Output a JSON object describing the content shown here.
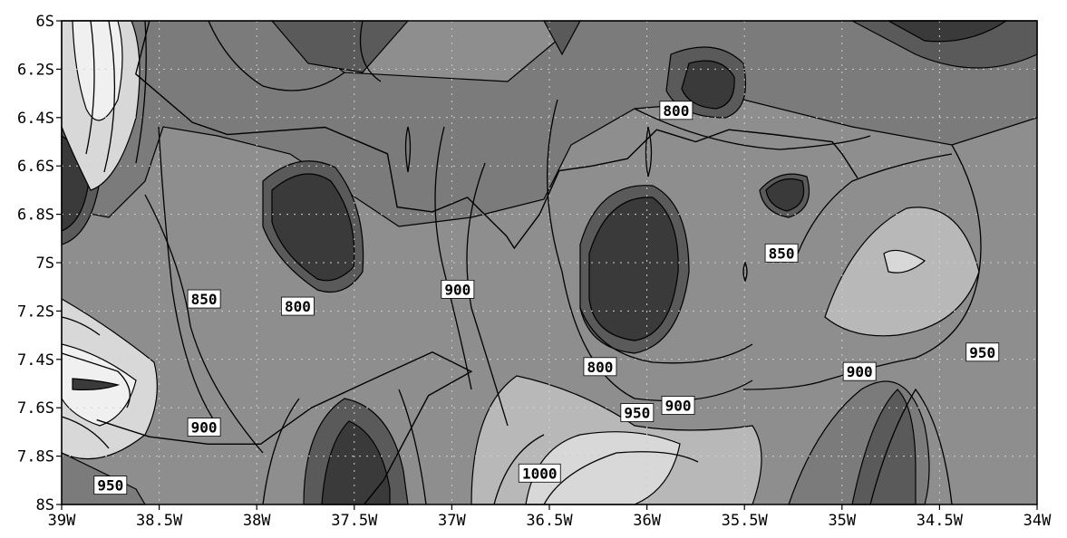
{
  "chart_data": {
    "type": "contour",
    "title": "",
    "xlabel": "",
    "ylabel": "",
    "xlim": [
      -39,
      -34
    ],
    "ylim": [
      -8,
      -6
    ],
    "x_tick_labels": [
      "39W",
      "38.5W",
      "38W",
      "37.5W",
      "37W",
      "36.5W",
      "36W",
      "35.5W",
      "35W",
      "34.5W",
      "34W"
    ],
    "x_tick_values": [
      -39,
      -38.5,
      -38,
      -37.5,
      -37,
      -36.5,
      -36,
      -35.5,
      -35,
      -34.5,
      -34
    ],
    "y_tick_labels": [
      "6S",
      "6.2S",
      "6.4S",
      "6.6S",
      "6.8S",
      "7S",
      "7.2S",
      "7.4S",
      "7.6S",
      "7.8S",
      "8S"
    ],
    "y_tick_values": [
      -6,
      -6.2,
      -6.4,
      -6.6,
      -6.8,
      -7,
      -7.2,
      -7.4,
      -7.6,
      -7.8,
      -8
    ],
    "grid": true,
    "contour_levels": [
      800,
      850,
      900,
      950,
      1000
    ],
    "fill_colors": [
      "#3a3a3a",
      "#5a5a5a",
      "#7b7b7b",
      "#8e8e8e",
      "#b8b8b8",
      "#d8d8d8",
      "#f0f0f0"
    ],
    "contour_labels": [
      {
        "text": "800",
        "x": -35.85,
        "y": -6.37
      },
      {
        "text": "850",
        "x": -35.31,
        "y": -6.96
      },
      {
        "text": "900",
        "x": -36.97,
        "y": -7.11
      },
      {
        "text": "850",
        "x": -38.27,
        "y": -7.15
      },
      {
        "text": "800",
        "x": -37.79,
        "y": -7.18
      },
      {
        "text": "950",
        "x": -34.28,
        "y": -7.37
      },
      {
        "text": "900",
        "x": -34.91,
        "y": -7.45
      },
      {
        "text": "800",
        "x": -36.24,
        "y": -7.43
      },
      {
        "text": "900",
        "x": -35.84,
        "y": -7.59
      },
      {
        "text": "950",
        "x": -36.05,
        "y": -7.62
      },
      {
        "text": "900",
        "x": -38.27,
        "y": -7.68
      },
      {
        "text": "1000",
        "x": -36.55,
        "y": -7.87
      },
      {
        "text": "950",
        "x": -38.75,
        "y": -7.92
      }
    ],
    "coastline": [
      [
        -38.55,
        -6.0
      ],
      [
        -38.62,
        -6.22
      ],
      [
        -38.33,
        -6.42
      ],
      [
        -38.15,
        -6.47
      ],
      [
        -37.65,
        -6.44
      ],
      [
        -37.33,
        -6.55
      ],
      [
        -37.28,
        -6.77
      ],
      [
        -37.1,
        -6.79
      ],
      [
        -36.92,
        -6.73
      ],
      [
        -36.72,
        -6.89
      ],
      [
        -36.68,
        -6.94
      ],
      [
        -36.55,
        -6.8
      ],
      [
        -36.45,
        -6.62
      ],
      [
        -36.28,
        -6.6
      ],
      [
        -36.1,
        -6.57
      ],
      [
        -35.95,
        -6.45
      ],
      [
        -35.75,
        -6.5
      ],
      [
        -35.58,
        -6.45
      ],
      [
        -35.35,
        -6.47
      ],
      [
        -35.05,
        -6.5
      ],
      [
        -35.0,
        -6.55
      ],
      [
        -34.92,
        -6.65
      ]
    ],
    "state_border": [
      [
        -38.82,
        -7.65
      ],
      [
        -38.55,
        -7.72
      ],
      [
        -38.25,
        -7.75
      ],
      [
        -37.98,
        -7.75
      ],
      [
        -37.72,
        -7.6
      ],
      [
        -37.4,
        -7.48
      ],
      [
        -37.1,
        -7.37
      ],
      [
        -36.9,
        -7.45
      ],
      [
        -37.12,
        -7.55
      ],
      [
        -37.35,
        -7.9
      ],
      [
        -37.45,
        -8.0
      ]
    ]
  }
}
